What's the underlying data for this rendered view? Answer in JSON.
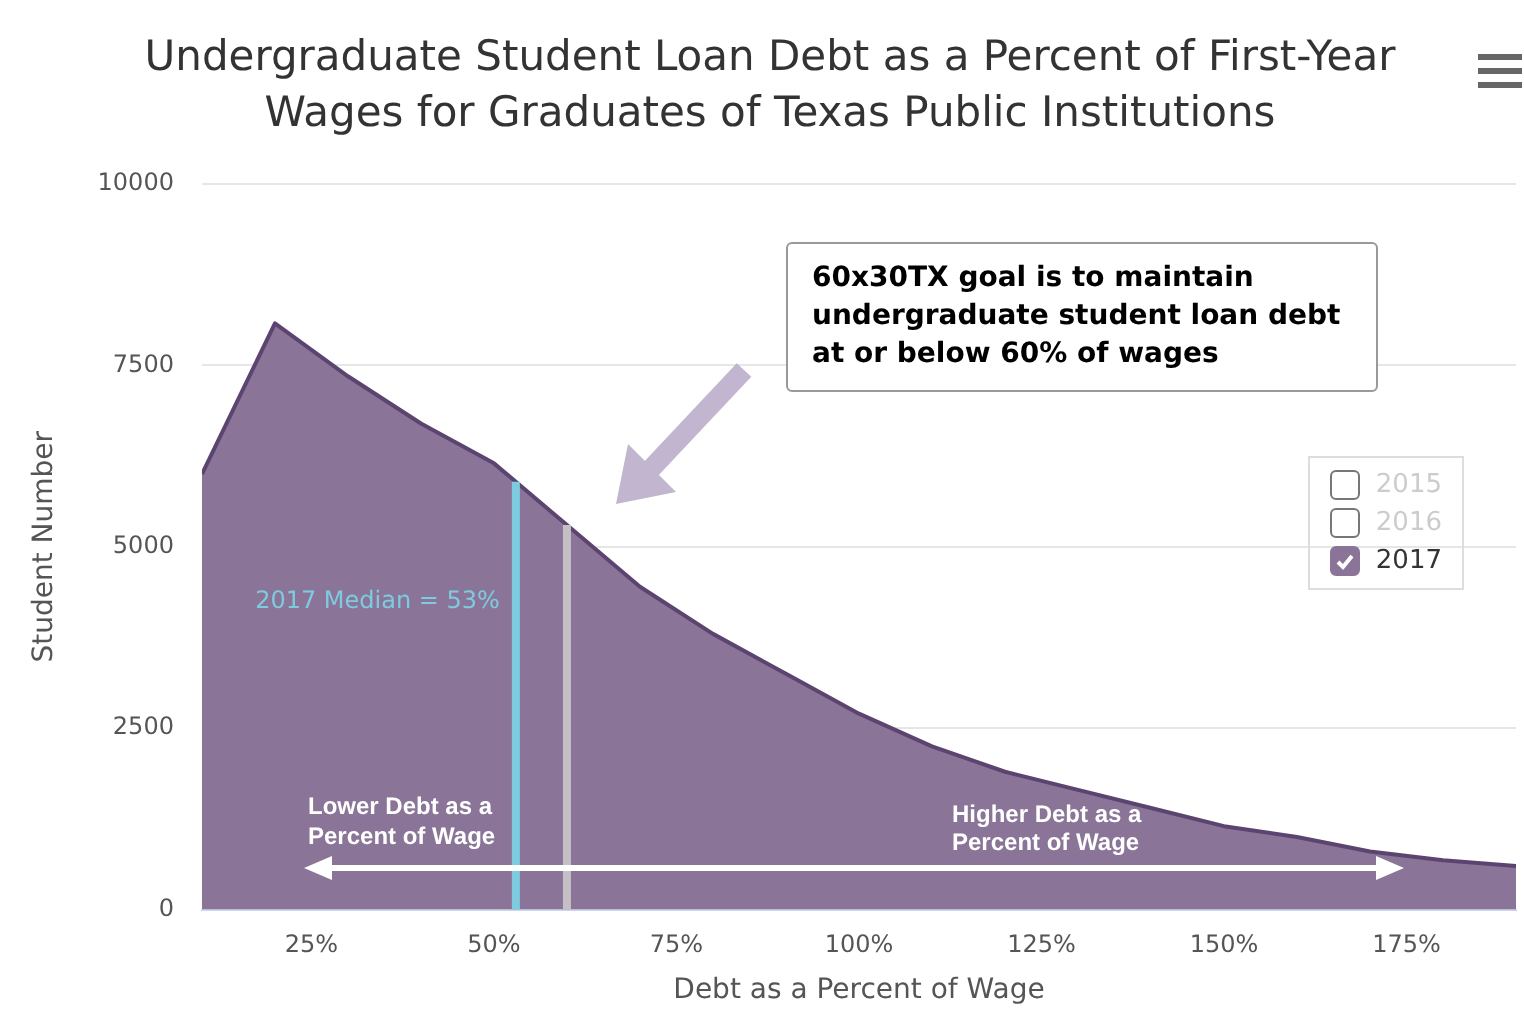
{
  "chart_data": {
    "type": "area",
    "title": "Undergraduate Student Loan Debt as a Percent of First-Year Wages for Graduates of Texas Public Institutions",
    "xlabel": "Debt as a Percent of Wage",
    "ylabel": "Student Number",
    "x": [
      10,
      20,
      30,
      40,
      50,
      60,
      70,
      80,
      90,
      100,
      110,
      120,
      130,
      140,
      150,
      160,
      170,
      180,
      190
    ],
    "series": [
      {
        "name": "2015",
        "values": [
          null,
          null,
          null,
          null,
          null,
          null,
          null,
          null,
          null,
          null,
          null,
          null,
          null,
          null,
          null,
          null,
          null,
          null,
          null
        ]
      },
      {
        "name": "2016",
        "values": [
          null,
          null,
          null,
          null,
          null,
          null,
          null,
          null,
          null,
          null,
          null,
          null,
          null,
          null,
          null,
          null,
          null,
          null,
          null
        ]
      },
      {
        "name": "2017",
        "color": "#8a7598",
        "values": [
          6000,
          8080,
          7350,
          6700,
          6150,
          5300,
          4450,
          3800,
          3250,
          2700,
          2250,
          1900,
          1650,
          1400,
          1150,
          1000,
          800,
          680,
          600
        ]
      }
    ],
    "xlim": [
      10,
      190
    ],
    "xticks": [
      {
        "value": 25,
        "label": "25%"
      },
      {
        "value": 50,
        "label": "50%"
      },
      {
        "value": 75,
        "label": "75%"
      },
      {
        "value": 100,
        "label": "100%"
      },
      {
        "value": 125,
        "label": "125%"
      },
      {
        "value": 150,
        "label": "150%"
      },
      {
        "value": 175,
        "label": "175%"
      }
    ],
    "ylim": [
      0,
      10000
    ],
    "yticks": [
      0,
      2500,
      5000,
      7500,
      10000
    ],
    "ref_lines": [
      {
        "axis": "x",
        "value": 53,
        "label": "2017 Median = 53%",
        "color": "#7ecbe0"
      },
      {
        "axis": "x",
        "value": 60,
        "color": "#c4c0c4"
      }
    ],
    "annotations": [
      "60x30TX goal is to maintain undergraduate student loan debt at or below 60% of wages",
      "Lower Debt as a Percent of Wage",
      "Higher Debt as a Percent of Wage"
    ],
    "grid": "y",
    "legend": "right",
    "marker": "none"
  }
}
